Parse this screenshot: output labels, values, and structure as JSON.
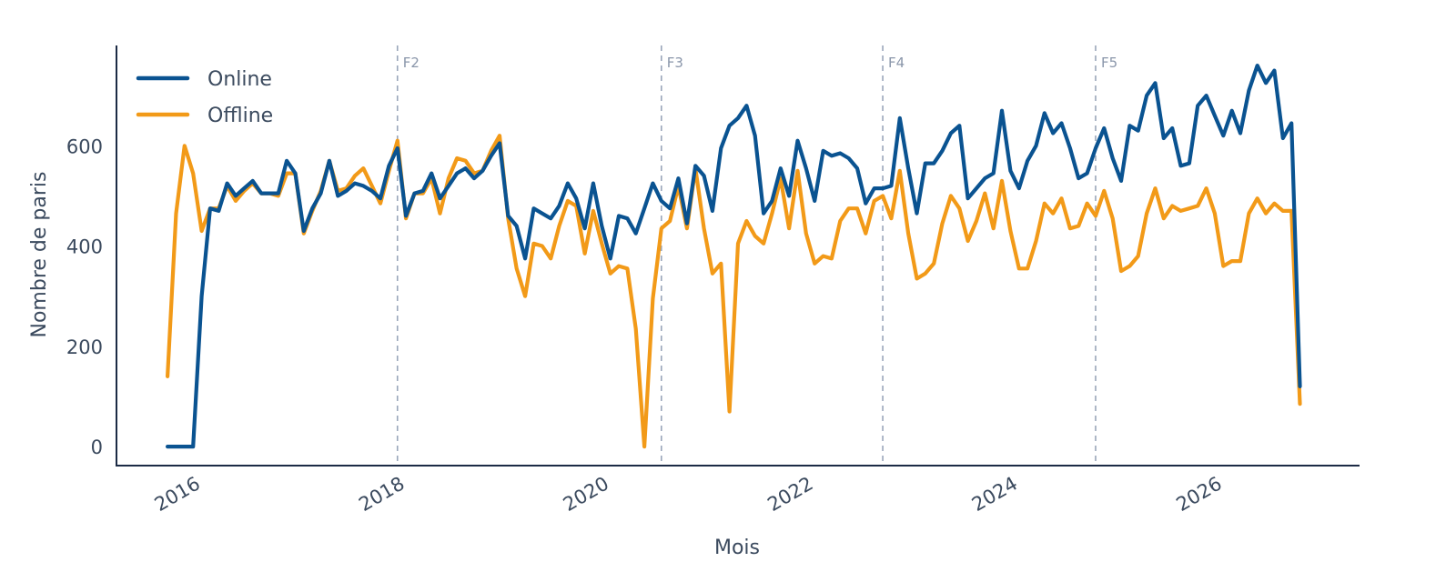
{
  "chart_data": {
    "type": "line",
    "title": "",
    "xlabel": "Mois",
    "ylabel": "Nombre de paris",
    "xlim": [
      "2015-06",
      "2027-08"
    ],
    "ylim": [
      -38,
      800
    ],
    "xticks": [
      "2016",
      "2018",
      "2020",
      "2022",
      "2024",
      "2026"
    ],
    "yticks": [
      0,
      200,
      400,
      600
    ],
    "grid": false,
    "legend_position": "top-left",
    "events": [
      {
        "label": "F2",
        "date": "2018-03"
      },
      {
        "label": "F3",
        "date": "2020-10"
      },
      {
        "label": "F4",
        "date": "2022-12"
      },
      {
        "label": "F5",
        "date": "2025-01"
      }
    ],
    "series": [
      {
        "name": "Online",
        "color": "#0a5391",
        "points": [
          [
            "2015-12",
            0
          ],
          [
            "2016-01",
            0
          ],
          [
            "2016-02",
            0
          ],
          [
            "2016-03",
            0
          ],
          [
            "2016-04",
            300
          ],
          [
            "2016-05",
            475
          ],
          [
            "2016-06",
            470
          ],
          [
            "2016-07",
            525
          ],
          [
            "2016-08",
            500
          ],
          [
            "2016-09",
            515
          ],
          [
            "2016-10",
            530
          ],
          [
            "2016-11",
            505
          ],
          [
            "2016-12",
            505
          ],
          [
            "2017-01",
            505
          ],
          [
            "2017-02",
            570
          ],
          [
            "2017-03",
            545
          ],
          [
            "2017-04",
            430
          ],
          [
            "2017-05",
            475
          ],
          [
            "2017-06",
            505
          ],
          [
            "2017-07",
            570
          ],
          [
            "2017-08",
            500
          ],
          [
            "2017-09",
            510
          ],
          [
            "2017-10",
            525
          ],
          [
            "2017-11",
            520
          ],
          [
            "2017-12",
            510
          ],
          [
            "2018-01",
            495
          ],
          [
            "2018-02",
            560
          ],
          [
            "2018-03",
            595
          ],
          [
            "2018-04",
            460
          ],
          [
            "2018-05",
            505
          ],
          [
            "2018-06",
            510
          ],
          [
            "2018-07",
            545
          ],
          [
            "2018-08",
            495
          ],
          [
            "2018-09",
            520
          ],
          [
            "2018-10",
            545
          ],
          [
            "2018-11",
            555
          ],
          [
            "2018-12",
            535
          ],
          [
            "2019-01",
            550
          ],
          [
            "2019-02",
            580
          ],
          [
            "2019-03",
            605
          ],
          [
            "2019-04",
            460
          ],
          [
            "2019-05",
            440
          ],
          [
            "2019-06",
            375
          ],
          [
            "2019-07",
            475
          ],
          [
            "2019-08",
            465
          ],
          [
            "2019-09",
            455
          ],
          [
            "2019-10",
            480
          ],
          [
            "2019-11",
            525
          ],
          [
            "2019-12",
            495
          ],
          [
            "2020-01",
            435
          ],
          [
            "2020-02",
            525
          ],
          [
            "2020-03",
            440
          ],
          [
            "2020-04",
            375
          ],
          [
            "2020-05",
            460
          ],
          [
            "2020-06",
            455
          ],
          [
            "2020-07",
            425
          ],
          [
            "2020-08",
            475
          ],
          [
            "2020-09",
            525
          ],
          [
            "2020-10",
            490
          ],
          [
            "2020-11",
            475
          ],
          [
            "2020-12",
            535
          ],
          [
            "2021-01",
            445
          ],
          [
            "2021-02",
            560
          ],
          [
            "2021-03",
            540
          ],
          [
            "2021-04",
            470
          ],
          [
            "2021-05",
            595
          ],
          [
            "2021-06",
            640
          ],
          [
            "2021-07",
            655
          ],
          [
            "2021-08",
            680
          ],
          [
            "2021-09",
            620
          ],
          [
            "2021-10",
            465
          ],
          [
            "2021-11",
            490
          ],
          [
            "2021-12",
            555
          ],
          [
            "2022-01",
            500
          ],
          [
            "2022-02",
            610
          ],
          [
            "2022-03",
            555
          ],
          [
            "2022-04",
            490
          ],
          [
            "2022-05",
            590
          ],
          [
            "2022-06",
            580
          ],
          [
            "2022-07",
            585
          ],
          [
            "2022-08",
            575
          ],
          [
            "2022-09",
            555
          ],
          [
            "2022-10",
            485
          ],
          [
            "2022-11",
            515
          ],
          [
            "2022-12",
            515
          ],
          [
            "2023-01",
            520
          ],
          [
            "2023-02",
            655
          ],
          [
            "2023-03",
            555
          ],
          [
            "2023-04",
            465
          ],
          [
            "2023-05",
            565
          ],
          [
            "2023-06",
            565
          ],
          [
            "2023-07",
            590
          ],
          [
            "2023-08",
            625
          ],
          [
            "2023-09",
            640
          ],
          [
            "2023-10",
            495
          ],
          [
            "2023-11",
            515
          ],
          [
            "2023-12",
            535
          ],
          [
            "2024-01",
            545
          ],
          [
            "2024-02",
            670
          ],
          [
            "2024-03",
            550
          ],
          [
            "2024-04",
            515
          ],
          [
            "2024-05",
            570
          ],
          [
            "2024-06",
            600
          ],
          [
            "2024-07",
            665
          ],
          [
            "2024-08",
            625
          ],
          [
            "2024-09",
            645
          ],
          [
            "2024-10",
            595
          ],
          [
            "2024-11",
            535
          ],
          [
            "2024-12",
            545
          ],
          [
            "2025-01",
            595
          ],
          [
            "2025-02",
            635
          ],
          [
            "2025-03",
            575
          ],
          [
            "2025-04",
            530
          ],
          [
            "2025-05",
            640
          ],
          [
            "2025-06",
            630
          ],
          [
            "2025-07",
            700
          ],
          [
            "2025-08",
            725
          ],
          [
            "2025-09",
            615
          ],
          [
            "2025-10",
            635
          ],
          [
            "2025-11",
            560
          ],
          [
            "2025-12",
            565
          ],
          [
            "2026-01",
            680
          ],
          [
            "2026-02",
            700
          ],
          [
            "2026-03",
            660
          ],
          [
            "2026-04",
            620
          ],
          [
            "2026-05",
            670
          ],
          [
            "2026-06",
            625
          ],
          [
            "2026-07",
            710
          ],
          [
            "2026-08",
            760
          ],
          [
            "2026-09",
            725
          ],
          [
            "2026-10",
            750
          ],
          [
            "2026-11",
            615
          ],
          [
            "2026-12",
            645
          ],
          [
            "2027-01",
            120
          ]
        ]
      },
      {
        "name": "Offline",
        "color": "#f29a18",
        "points": [
          [
            "2015-12",
            140
          ],
          [
            "2016-01",
            465
          ],
          [
            "2016-02",
            600
          ],
          [
            "2016-03",
            545
          ],
          [
            "2016-04",
            430
          ],
          [
            "2016-05",
            475
          ],
          [
            "2016-06",
            475
          ],
          [
            "2016-07",
            520
          ],
          [
            "2016-08",
            490
          ],
          [
            "2016-09",
            510
          ],
          [
            "2016-10",
            525
          ],
          [
            "2016-11",
            505
          ],
          [
            "2016-12",
            505
          ],
          [
            "2017-01",
            500
          ],
          [
            "2017-02",
            545
          ],
          [
            "2017-03",
            545
          ],
          [
            "2017-04",
            425
          ],
          [
            "2017-05",
            470
          ],
          [
            "2017-06",
            510
          ],
          [
            "2017-07",
            570
          ],
          [
            "2017-08",
            510
          ],
          [
            "2017-09",
            515
          ],
          [
            "2017-10",
            540
          ],
          [
            "2017-11",
            555
          ],
          [
            "2017-12",
            520
          ],
          [
            "2018-01",
            485
          ],
          [
            "2018-02",
            550
          ],
          [
            "2018-03",
            610
          ],
          [
            "2018-04",
            455
          ],
          [
            "2018-05",
            505
          ],
          [
            "2018-06",
            505
          ],
          [
            "2018-07",
            535
          ],
          [
            "2018-08",
            465
          ],
          [
            "2018-09",
            535
          ],
          [
            "2018-10",
            575
          ],
          [
            "2018-11",
            570
          ],
          [
            "2018-12",
            545
          ],
          [
            "2019-01",
            550
          ],
          [
            "2019-02",
            590
          ],
          [
            "2019-03",
            620
          ],
          [
            "2019-04",
            455
          ],
          [
            "2019-05",
            355
          ],
          [
            "2019-06",
            300
          ],
          [
            "2019-07",
            405
          ],
          [
            "2019-08",
            400
          ],
          [
            "2019-09",
            375
          ],
          [
            "2019-10",
            440
          ],
          [
            "2019-11",
            490
          ],
          [
            "2019-12",
            480
          ],
          [
            "2020-01",
            385
          ],
          [
            "2020-02",
            470
          ],
          [
            "2020-03",
            405
          ],
          [
            "2020-04",
            345
          ],
          [
            "2020-05",
            360
          ],
          [
            "2020-06",
            355
          ],
          [
            "2020-07",
            235
          ],
          [
            "2020-08",
            0
          ],
          [
            "2020-09",
            295
          ],
          [
            "2020-10",
            435
          ],
          [
            "2020-11",
            450
          ],
          [
            "2020-12",
            520
          ],
          [
            "2021-01",
            435
          ],
          [
            "2021-02",
            555
          ],
          [
            "2021-03",
            435
          ],
          [
            "2021-04",
            345
          ],
          [
            "2021-05",
            365
          ],
          [
            "2021-06",
            70
          ],
          [
            "2021-07",
            405
          ],
          [
            "2021-08",
            450
          ],
          [
            "2021-09",
            420
          ],
          [
            "2021-10",
            405
          ],
          [
            "2021-11",
            465
          ],
          [
            "2021-12",
            535
          ],
          [
            "2022-01",
            435
          ],
          [
            "2022-02",
            550
          ],
          [
            "2022-03",
            425
          ],
          [
            "2022-04",
            365
          ],
          [
            "2022-05",
            380
          ],
          [
            "2022-06",
            375
          ],
          [
            "2022-07",
            450
          ],
          [
            "2022-08",
            475
          ],
          [
            "2022-09",
            475
          ],
          [
            "2022-10",
            425
          ],
          [
            "2022-11",
            490
          ],
          [
            "2022-12",
            500
          ],
          [
            "2023-01",
            455
          ],
          [
            "2023-02",
            550
          ],
          [
            "2023-03",
            425
          ],
          [
            "2023-04",
            335
          ],
          [
            "2023-05",
            345
          ],
          [
            "2023-06",
            365
          ],
          [
            "2023-07",
            445
          ],
          [
            "2023-08",
            500
          ],
          [
            "2023-09",
            475
          ],
          [
            "2023-10",
            410
          ],
          [
            "2023-11",
            450
          ],
          [
            "2023-12",
            505
          ],
          [
            "2024-01",
            435
          ],
          [
            "2024-02",
            530
          ],
          [
            "2024-03",
            430
          ],
          [
            "2024-04",
            355
          ],
          [
            "2024-05",
            355
          ],
          [
            "2024-06",
            410
          ],
          [
            "2024-07",
            485
          ],
          [
            "2024-08",
            465
          ],
          [
            "2024-09",
            495
          ],
          [
            "2024-10",
            435
          ],
          [
            "2024-11",
            440
          ],
          [
            "2024-12",
            485
          ],
          [
            "2025-01",
            460
          ],
          [
            "2025-02",
            510
          ],
          [
            "2025-03",
            455
          ],
          [
            "2025-04",
            350
          ],
          [
            "2025-05",
            360
          ],
          [
            "2025-06",
            380
          ],
          [
            "2025-07",
            465
          ],
          [
            "2025-08",
            515
          ],
          [
            "2025-09",
            455
          ],
          [
            "2025-10",
            480
          ],
          [
            "2025-11",
            470
          ],
          [
            "2025-12",
            475
          ],
          [
            "2026-01",
            480
          ],
          [
            "2026-02",
            515
          ],
          [
            "2026-03",
            465
          ],
          [
            "2026-04",
            360
          ],
          [
            "2026-05",
            370
          ],
          [
            "2026-06",
            370
          ],
          [
            "2026-07",
            465
          ],
          [
            "2026-08",
            495
          ],
          [
            "2026-09",
            465
          ],
          [
            "2026-10",
            485
          ],
          [
            "2026-11",
            470
          ],
          [
            "2026-12",
            470
          ],
          [
            "2027-01",
            85
          ]
        ]
      }
    ]
  }
}
